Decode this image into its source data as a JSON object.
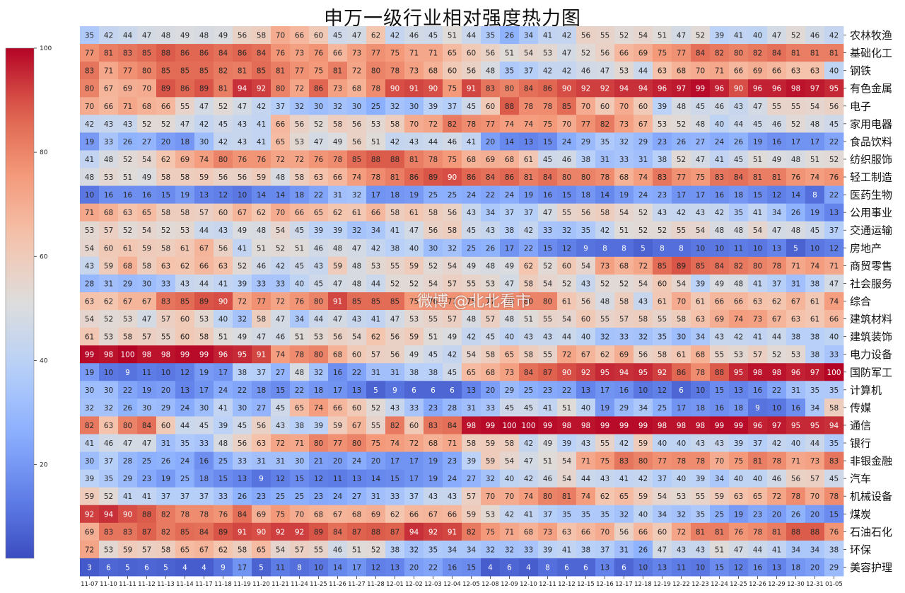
{
  "chart_data": {
    "type": "heatmap",
    "title": "申万一级行业相对强度热力图",
    "colormap": "coolwarm",
    "vmin": 0,
    "vmax": 100,
    "colorbar_ticks": [
      20,
      40,
      60,
      80,
      100
    ],
    "x_labels": [
      "11-07",
      "11-10",
      "11-11",
      "11-12",
      "11-13",
      "11-14",
      "11-17",
      "11-18",
      "11-19",
      "11-20",
      "11-21",
      "11-24",
      "11-25",
      "11-26",
      "11-27",
      "11-28",
      "12-01",
      "12-02",
      "12-03",
      "12-04",
      "12-05",
      "12-08",
      "12-09",
      "12-10",
      "12-11",
      "12-12",
      "12-15",
      "12-16",
      "12-17",
      "12-18",
      "12-19",
      "12-22",
      "12-23",
      "12-24",
      "12-25",
      "12-26",
      "12-29",
      "12-30",
      "12-31",
      "01-05"
    ],
    "y_labels": [
      "农林牧渔",
      "基础化工",
      "钢铁",
      "有色金属",
      "电子",
      "家用电器",
      "食品饮料",
      "纺织服饰",
      "轻工制造",
      "医药生物",
      "公用事业",
      "交通运输",
      "房地产",
      "商贸零售",
      "社会服务",
      "综合",
      "建筑材料",
      "建筑装饰",
      "电力设备",
      "国防军工",
      "计算机",
      "传媒",
      "通信",
      "银行",
      "非银金融",
      "汽车",
      "机械设备",
      "煤炭",
      "石油石化",
      "环保",
      "美容护理"
    ],
    "values": [
      [
        35,
        42,
        44,
        47,
        48,
        49,
        48,
        49,
        56,
        58,
        70,
        66,
        60,
        45,
        47,
        62,
        42,
        46,
        45,
        51,
        44,
        35,
        26,
        34,
        41,
        42,
        56,
        55,
        52,
        54,
        51,
        47,
        52,
        39,
        41,
        40,
        47,
        52,
        46,
        42
      ],
      [
        77,
        81,
        83,
        85,
        88,
        86,
        86,
        84,
        86,
        84,
        76,
        73,
        76,
        66,
        73,
        77,
        75,
        71,
        71,
        65,
        60,
        56,
        51,
        54,
        53,
        47,
        52,
        56,
        66,
        69,
        75,
        77,
        84,
        82,
        80,
        82,
        84,
        81,
        81,
        81
      ],
      [
        83,
        71,
        77,
        80,
        85,
        85,
        85,
        82,
        81,
        85,
        81,
        77,
        75,
        81,
        72,
        80,
        78,
        73,
        68,
        60,
        56,
        48,
        35,
        37,
        42,
        42,
        46,
        47,
        53,
        44,
        63,
        68,
        70,
        71,
        66,
        69,
        66,
        63,
        63,
        40
      ],
      [
        80,
        67,
        69,
        70,
        89,
        86,
        89,
        81,
        94,
        92,
        80,
        72,
        86,
        73,
        68,
        78,
        90,
        91,
        90,
        75,
        91,
        83,
        80,
        84,
        86,
        90,
        92,
        92,
        94,
        94,
        96,
        97,
        99,
        96,
        90,
        96,
        96,
        98,
        97,
        95
      ],
      [
        70,
        66,
        71,
        68,
        66,
        55,
        47,
        52,
        47,
        42,
        37,
        32,
        30,
        32,
        30,
        25,
        32,
        30,
        39,
        37,
        45,
        60,
        88,
        78,
        78,
        85,
        70,
        60,
        70,
        60,
        39,
        48,
        45,
        46,
        43,
        47,
        55,
        55,
        54,
        56
      ],
      [
        42,
        43,
        43,
        52,
        52,
        47,
        42,
        45,
        43,
        41,
        66,
        56,
        52,
        58,
        56,
        53,
        58,
        70,
        72,
        82,
        78,
        77,
        74,
        74,
        75,
        70,
        77,
        82,
        73,
        67,
        53,
        52,
        48,
        40,
        44,
        45,
        46,
        52,
        48,
        45
      ],
      [
        19,
        33,
        26,
        27,
        20,
        18,
        30,
        42,
        43,
        41,
        65,
        53,
        47,
        49,
        56,
        51,
        42,
        43,
        44,
        46,
        41,
        20,
        14,
        13,
        15,
        24,
        29,
        35,
        32,
        29,
        23,
        26,
        27,
        24,
        26,
        19,
        16,
        17,
        17,
        22
      ],
      [
        41,
        48,
        52,
        54,
        62,
        69,
        74,
        80,
        76,
        76,
        72,
        72,
        76,
        78,
        85,
        88,
        88,
        81,
        78,
        75,
        68,
        69,
        68,
        61,
        45,
        46,
        38,
        31,
        33,
        31,
        38,
        52,
        47,
        41,
        45,
        51,
        49,
        48,
        51,
        52
      ],
      [
        48,
        53,
        51,
        49,
        58,
        58,
        59,
        56,
        56,
        59,
        48,
        58,
        63,
        66,
        74,
        78,
        81,
        86,
        89,
        90,
        86,
        84,
        86,
        81,
        84,
        80,
        80,
        78,
        68,
        74,
        83,
        77,
        75,
        83,
        84,
        81,
        81,
        76,
        74,
        76
      ],
      [
        10,
        16,
        16,
        16,
        15,
        19,
        13,
        12,
        10,
        14,
        14,
        18,
        22,
        31,
        32,
        17,
        18,
        19,
        25,
        25,
        24,
        22,
        24,
        19,
        16,
        15,
        18,
        14,
        19,
        24,
        23,
        17,
        17,
        16,
        18,
        15,
        12,
        14,
        8,
        22
      ],
      [
        71,
        68,
        63,
        65,
        58,
        58,
        57,
        60,
        67,
        62,
        70,
        66,
        65,
        62,
        61,
        66,
        58,
        61,
        58,
        56,
        43,
        34,
        37,
        37,
        47,
        55,
        56,
        58,
        54,
        52,
        43,
        42,
        43,
        42,
        35,
        41,
        34,
        26,
        19,
        13
      ],
      [
        53,
        57,
        52,
        54,
        52,
        53,
        44,
        43,
        49,
        48,
        54,
        45,
        39,
        39,
        32,
        34,
        41,
        47,
        56,
        58,
        45,
        43,
        38,
        42,
        33,
        32,
        35,
        42,
        51,
        52,
        52,
        55,
        54,
        48,
        48,
        54,
        47,
        48,
        45,
        37
      ],
      [
        54,
        60,
        61,
        59,
        58,
        61,
        67,
        56,
        41,
        51,
        52,
        51,
        46,
        48,
        47,
        42,
        38,
        40,
        30,
        32,
        25,
        26,
        17,
        22,
        15,
        12,
        9,
        8,
        8,
        5,
        8,
        8,
        10,
        10,
        11,
        10,
        13,
        5,
        10,
        12
      ],
      [
        43,
        59,
        68,
        58,
        63,
        62,
        66,
        63,
        52,
        46,
        42,
        45,
        43,
        59,
        48,
        53,
        55,
        59,
        52,
        54,
        49,
        48,
        49,
        62,
        52,
        60,
        54,
        73,
        68,
        72,
        85,
        89,
        85,
        84,
        82,
        80,
        78,
        71,
        74,
        71
      ],
      [
        28,
        31,
        29,
        30,
        33,
        43,
        44,
        41,
        39,
        33,
        33,
        40,
        45,
        47,
        48,
        44,
        52,
        52,
        54,
        57,
        55,
        53,
        47,
        58,
        54,
        52,
        43,
        52,
        52,
        54,
        60,
        54,
        39,
        49,
        48,
        41,
        37,
        31,
        38,
        47
      ],
      [
        63,
        62,
        67,
        67,
        83,
        85,
        89,
        90,
        72,
        77,
        72,
        76,
        80,
        91,
        85,
        85,
        85,
        75,
        76,
        77,
        75,
        77,
        78,
        80,
        80,
        61,
        56,
        48,
        58,
        43,
        61,
        70,
        61,
        66,
        66,
        63,
        62,
        67,
        61,
        74
      ],
      [
        54,
        52,
        53,
        47,
        57,
        60,
        53,
        40,
        32,
        58,
        47,
        34,
        44,
        47,
        43,
        41,
        47,
        53,
        55,
        57,
        48,
        57,
        48,
        51,
        55,
        54,
        60,
        55,
        57,
        58,
        55,
        58,
        63,
        69,
        74,
        73,
        67,
        63,
        61,
        66
      ],
      [
        61,
        53,
        58,
        57,
        55,
        60,
        58,
        51,
        49,
        47,
        46,
        51,
        53,
        56,
        54,
        62,
        56,
        59,
        51,
        49,
        42,
        45,
        40,
        43,
        43,
        44,
        40,
        32,
        33,
        32,
        35,
        30,
        34,
        43,
        42,
        41,
        44,
        38,
        38,
        40
      ],
      [
        99,
        98,
        100,
        98,
        98,
        99,
        99,
        96,
        95,
        91,
        74,
        78,
        80,
        68,
        60,
        57,
        56,
        49,
        45,
        42,
        54,
        58,
        65,
        58,
        55,
        72,
        67,
        62,
        69,
        56,
        58,
        61,
        68,
        55,
        53,
        57,
        52,
        53,
        38,
        33
      ],
      [
        19,
        10,
        9,
        11,
        10,
        12,
        19,
        17,
        38,
        37,
        27,
        48,
        32,
        16,
        22,
        31,
        31,
        38,
        38,
        45,
        65,
        68,
        73,
        84,
        87,
        90,
        92,
        95,
        94,
        95,
        92,
        86,
        78,
        88,
        95,
        98,
        98,
        96,
        97,
        100
      ],
      [
        30,
        30,
        22,
        19,
        20,
        13,
        17,
        24,
        22,
        18,
        15,
        22,
        18,
        17,
        13,
        5,
        9,
        6,
        6,
        6,
        13,
        20,
        29,
        25,
        23,
        22,
        13,
        17,
        16,
        10,
        12,
        6,
        10,
        15,
        13,
        16,
        22,
        31,
        35,
        35
      ],
      [
        32,
        32,
        26,
        30,
        29,
        24,
        30,
        41,
        30,
        27,
        45,
        65,
        74,
        66,
        60,
        52,
        43,
        33,
        23,
        28,
        31,
        33,
        45,
        45,
        41,
        51,
        40,
        19,
        29,
        34,
        25,
        17,
        18,
        16,
        18,
        9,
        10,
        16,
        34,
        58
      ],
      [
        82,
        63,
        80,
        84,
        60,
        44,
        45,
        39,
        45,
        56,
        43,
        38,
        39,
        59,
        67,
        55,
        82,
        60,
        83,
        84,
        98,
        99,
        100,
        100,
        99,
        98,
        98,
        99,
        99,
        99,
        98,
        98,
        98,
        99,
        99,
        96,
        97,
        95,
        95,
        94
      ],
      [
        41,
        46,
        47,
        47,
        31,
        35,
        33,
        48,
        56,
        63,
        72,
        71,
        80,
        77,
        80,
        75,
        74,
        72,
        68,
        71,
        58,
        59,
        58,
        42,
        49,
        39,
        43,
        55,
        42,
        59,
        40,
        40,
        43,
        43,
        39,
        37,
        42,
        40,
        44,
        35
      ],
      [
        30,
        37,
        28,
        25,
        26,
        24,
        16,
        25,
        33,
        31,
        31,
        30,
        21,
        20,
        24,
        20,
        17,
        17,
        19,
        23,
        39,
        59,
        54,
        47,
        51,
        54,
        71,
        75,
        83,
        80,
        77,
        78,
        78,
        70,
        75,
        81,
        78,
        71,
        73,
        83
      ],
      [
        39,
        35,
        29,
        23,
        19,
        25,
        18,
        15,
        13,
        9,
        12,
        15,
        12,
        11,
        13,
        14,
        15,
        17,
        19,
        24,
        27,
        32,
        40,
        42,
        46,
        54,
        44,
        43,
        41,
        42,
        37,
        40,
        39,
        34,
        40,
        40,
        46,
        56,
        57,
        45
      ],
      [
        59,
        52,
        41,
        41,
        37,
        37,
        37,
        33,
        26,
        23,
        25,
        25,
        23,
        24,
        27,
        31,
        33,
        37,
        43,
        43,
        57,
        70,
        70,
        74,
        80,
        81,
        74,
        62,
        65,
        59,
        54,
        53,
        55,
        59,
        63,
        65,
        72,
        78,
        70,
        78
      ],
      [
        92,
        94,
        90,
        88,
        82,
        78,
        78,
        76,
        84,
        69,
        75,
        70,
        68,
        67,
        68,
        69,
        62,
        66,
        67,
        66,
        59,
        53,
        42,
        41,
        37,
        35,
        35,
        35,
        32,
        40,
        34,
        32,
        35,
        25,
        19,
        23,
        20,
        26,
        20,
        15
      ],
      [
        69,
        83,
        83,
        87,
        82,
        85,
        84,
        89,
        91,
        90,
        92,
        92,
        89,
        84,
        87,
        88,
        87,
        94,
        92,
        91,
        82,
        75,
        71,
        68,
        73,
        63,
        66,
        70,
        56,
        66,
        60,
        72,
        81,
        81,
        76,
        78,
        81,
        88,
        88,
        76
      ],
      [
        72,
        53,
        59,
        57,
        58,
        65,
        67,
        62,
        58,
        65,
        54,
        57,
        55,
        46,
        51,
        52,
        38,
        32,
        35,
        34,
        34,
        32,
        32,
        33,
        39,
        41,
        38,
        37,
        31,
        26,
        47,
        43,
        43,
        51,
        47,
        44,
        41,
        34,
        34,
        38
      ],
      [
        3,
        6,
        5,
        6,
        5,
        4,
        4,
        9,
        17,
        5,
        11,
        8,
        10,
        14,
        17,
        12,
        13,
        20,
        22,
        16,
        15,
        4,
        6,
        4,
        8,
        6,
        6,
        13,
        6,
        10,
        13,
        11,
        10,
        15,
        12,
        16,
        13,
        18,
        20,
        29
      ]
    ]
  },
  "watermark": "微博 @北北看市"
}
